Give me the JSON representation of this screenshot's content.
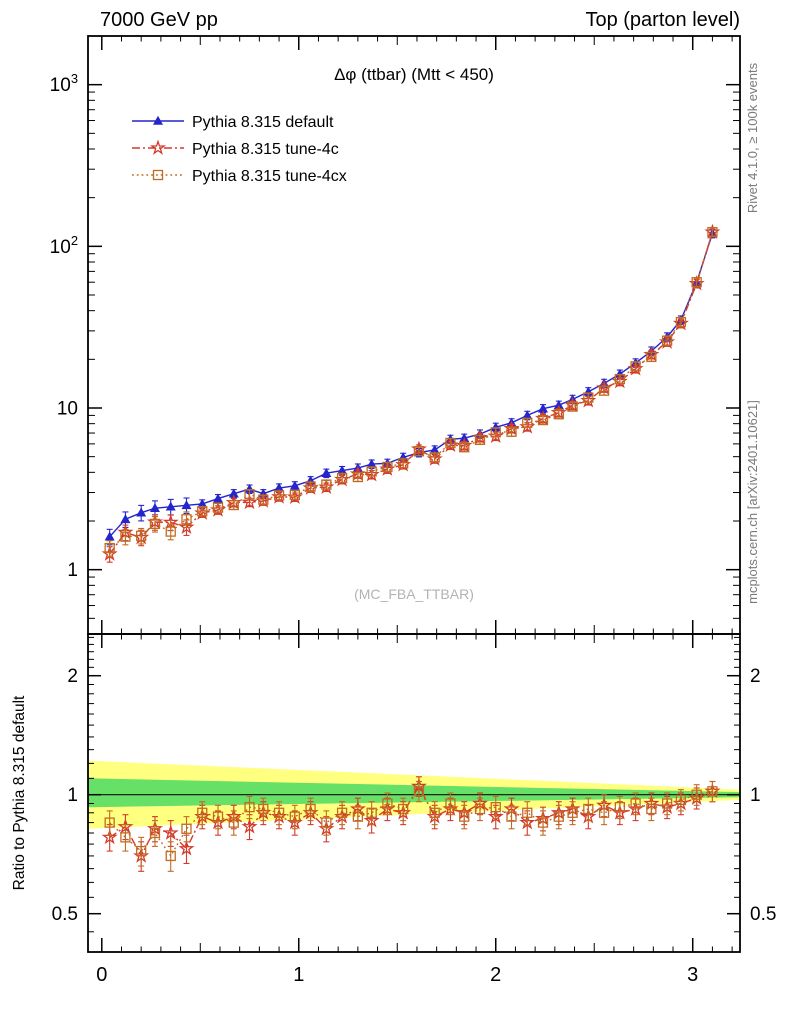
{
  "header": {
    "left": "7000 GeV pp",
    "right": "Top (parton level)"
  },
  "watermark": "(MC_FBA_TTBAR)",
  "side_notes": {
    "top_right": "Rivet 4.1.0, ≥ 100k events",
    "bottom_right": "mcplots.cern.ch [arXiv:2401.10621]"
  },
  "colors": {
    "default_blue": "#2525cc",
    "tune4c_red": "#d43a2a",
    "tune4cx_orange": "#c06c20",
    "band_yellow": "#ffff80",
    "band_green": "#66e066",
    "frame": "#000000",
    "watermark_gray": "#b3b3b3"
  },
  "chart_data": [
    {
      "id": "main",
      "type": "line",
      "title": "Δφ (ttbar) (Mtt < 450)",
      "xlabel": "",
      "ylabel": "",
      "yscale": "log",
      "xlim": [
        -0.07,
        3.24
      ],
      "ylim": [
        0.4,
        2000
      ],
      "grid": false,
      "legend_position": "top-left",
      "x": [
        0.04,
        0.12,
        0.2,
        0.27,
        0.35,
        0.43,
        0.51,
        0.59,
        0.67,
        0.75,
        0.82,
        0.9,
        0.98,
        1.06,
        1.14,
        1.22,
        1.3,
        1.37,
        1.45,
        1.53,
        1.61,
        1.69,
        1.77,
        1.84,
        1.92,
        2.0,
        2.08,
        2.16,
        2.24,
        2.32,
        2.39,
        2.47,
        2.55,
        2.63,
        2.71,
        2.79,
        2.87,
        2.94,
        3.02,
        3.1
      ],
      "series": [
        {
          "name": "Pythia 8.315 default",
          "color": "#2525cc",
          "marker": "triangle",
          "line": "solid",
          "yerr_rel": 0.05,
          "values": [
            1.6,
            2.05,
            2.25,
            2.4,
            2.45,
            2.5,
            2.55,
            2.75,
            2.95,
            3.15,
            2.95,
            3.2,
            3.3,
            3.55,
            3.95,
            4.1,
            4.25,
            4.5,
            4.55,
            4.95,
            5.3,
            5.5,
            6.4,
            6.5,
            6.9,
            7.6,
            8.1,
            9.0,
            9.9,
            10.4,
            11.3,
            12.6,
            14.2,
            16.2,
            19.0,
            22.5,
            27.5,
            35.0,
            60.0,
            120.0
          ]
        },
        {
          "name": "Pythia 8.315 tune-4c",
          "color": "#d43a2a",
          "marker": "star",
          "line": "dashdot",
          "yerr_rel": 0.05,
          "values": [
            1.25,
            1.7,
            1.58,
            1.97,
            1.96,
            1.83,
            2.24,
            2.34,
            2.6,
            2.61,
            2.66,
            2.82,
            2.81,
            3.2,
            3.24,
            3.61,
            3.91,
            3.87,
            4.19,
            4.46,
            5.57,
            4.84,
            5.89,
            5.85,
            6.56,
            6.69,
            7.45,
            7.65,
            8.61,
            9.36,
            10.4,
            11.1,
            13.3,
            14.6,
            17.5,
            21.4,
            25.6,
            33.3,
            58.8,
            122.4
          ]
        },
        {
          "name": "Pythia 8.315 tune-4cx",
          "color": "#c06c20",
          "marker": "square",
          "line": "dotted",
          "yerr_rel": 0.05,
          "values": [
            1.36,
            1.6,
            1.62,
            1.92,
            1.72,
            2.05,
            2.3,
            2.42,
            2.51,
            2.93,
            2.71,
            2.88,
            2.9,
            3.27,
            3.36,
            3.69,
            3.74,
            4.05,
            4.32,
            4.55,
            5.41,
            4.95,
            6.08,
            5.72,
            6.35,
            7.07,
            7.13,
            8.1,
            8.42,
            9.15,
            10.2,
            11.6,
            12.8,
            15.1,
            18.1,
            20.7,
            26.1,
            34.0,
            60.0,
            122.4
          ]
        }
      ],
      "xticks": [
        0,
        1,
        2,
        3
      ],
      "yticks": [
        {
          "v": 1,
          "label": "1"
        },
        {
          "v": 10,
          "label": "10"
        },
        {
          "v": 100,
          "label": "10^2"
        },
        {
          "v": 1000,
          "label": "10^3"
        }
      ]
    },
    {
      "id": "ratio",
      "type": "line",
      "ylabel": "Ratio to Pythia 8.315 default",
      "yscale": "log",
      "xlim": [
        -0.07,
        3.24
      ],
      "ylim": [
        0.4,
        2.55
      ],
      "reference_line": 1,
      "bands": [
        {
          "name": "yellow-uncertainty-band",
          "color": "#ffff80",
          "lo": [
            0.82,
            0.97
          ],
          "hi": [
            1.22,
            1.03
          ]
        },
        {
          "name": "green-uncertainty-band",
          "color": "#66e066",
          "lo": [
            0.93,
            0.985
          ],
          "hi": [
            1.1,
            1.015
          ]
        }
      ],
      "x": [
        0.04,
        0.12,
        0.2,
        0.27,
        0.35,
        0.43,
        0.51,
        0.59,
        0.67,
        0.75,
        0.82,
        0.9,
        0.98,
        1.06,
        1.14,
        1.22,
        1.3,
        1.37,
        1.45,
        1.53,
        1.61,
        1.69,
        1.77,
        1.84,
        1.92,
        2.0,
        2.08,
        2.16,
        2.24,
        2.32,
        2.39,
        2.47,
        2.55,
        2.63,
        2.71,
        2.79,
        2.87,
        2.94,
        3.02,
        3.1
      ],
      "series": [
        {
          "name": "Pythia 8.315 tune-4c",
          "color": "#d43a2a",
          "marker": "star",
          "line": "dashdot",
          "yerr_abs": 0.06,
          "values": [
            0.78,
            0.83,
            0.7,
            0.82,
            0.8,
            0.73,
            0.88,
            0.85,
            0.88,
            0.83,
            0.9,
            0.88,
            0.85,
            0.9,
            0.82,
            0.88,
            0.92,
            0.86,
            0.92,
            0.9,
            1.05,
            0.88,
            0.92,
            0.9,
            0.95,
            0.88,
            0.92,
            0.85,
            0.87,
            0.9,
            0.92,
            0.88,
            0.94,
            0.9,
            0.92,
            0.95,
            0.93,
            0.95,
            0.98,
            1.02
          ]
        },
        {
          "name": "Pythia 8.315 tune-4cx",
          "color": "#c06c20",
          "marker": "square",
          "line": "dotted",
          "yerr_abs": 0.06,
          "values": [
            0.85,
            0.78,
            0.72,
            0.8,
            0.7,
            0.82,
            0.9,
            0.88,
            0.85,
            0.93,
            0.92,
            0.9,
            0.88,
            0.92,
            0.85,
            0.9,
            0.88,
            0.9,
            0.95,
            0.92,
            1.02,
            0.9,
            0.95,
            0.88,
            0.92,
            0.93,
            0.88,
            0.9,
            0.85,
            0.88,
            0.9,
            0.92,
            0.9,
            0.93,
            0.95,
            0.92,
            0.95,
            0.97,
            1.0,
            1.02
          ]
        }
      ],
      "xticks": [
        0,
        1,
        2,
        3
      ],
      "yticks": [
        {
          "v": 0.5,
          "label": "0.5"
        },
        {
          "v": 1,
          "label": "1"
        },
        {
          "v": 2,
          "label": "2"
        }
      ]
    }
  ]
}
